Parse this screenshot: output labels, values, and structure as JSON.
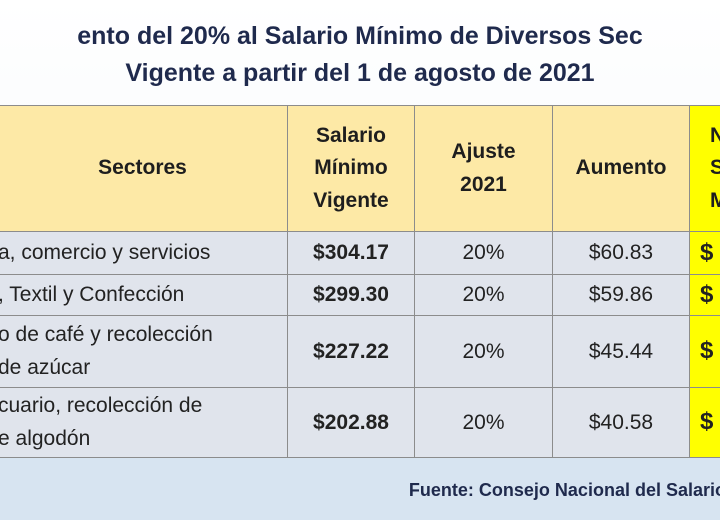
{
  "title": [
    "ento del 20% al Salario Mínimo de Diversos Sec",
    "Vigente a partir del 1 de agosto de 2021"
  ],
  "table": {
    "header": [
      [
        "Sectores"
      ],
      [
        "Salario",
        "Mínimo",
        "Vigente"
      ],
      [
        "Ajuste",
        "2021"
      ],
      [
        "Aumento"
      ],
      [
        "N",
        "S",
        "M"
      ]
    ],
    "rows": [
      [
        [
          "a, comercio y servicios"
        ],
        [
          "$304.17"
        ],
        [
          "20%"
        ],
        [
          "$60.83"
        ],
        [
          "$"
        ]
      ],
      [
        [
          ", Textil y Confección"
        ],
        [
          "$299.30"
        ],
        [
          "20%"
        ],
        [
          "$59.86"
        ],
        [
          "$"
        ]
      ],
      [
        [
          "o de café y recolección",
          "de azúcar"
        ],
        [
          "$227.22"
        ],
        [
          "20%"
        ],
        [
          "$45.44"
        ],
        [
          "$"
        ]
      ],
      [
        [
          "cuario, recolección de",
          "e algodón"
        ],
        [
          "$202.88"
        ],
        [
          "20%"
        ],
        [
          "$40.58"
        ],
        [
          "$"
        ]
      ]
    ]
  },
  "footer": "Fuente: Consejo Nacional del Salario"
}
